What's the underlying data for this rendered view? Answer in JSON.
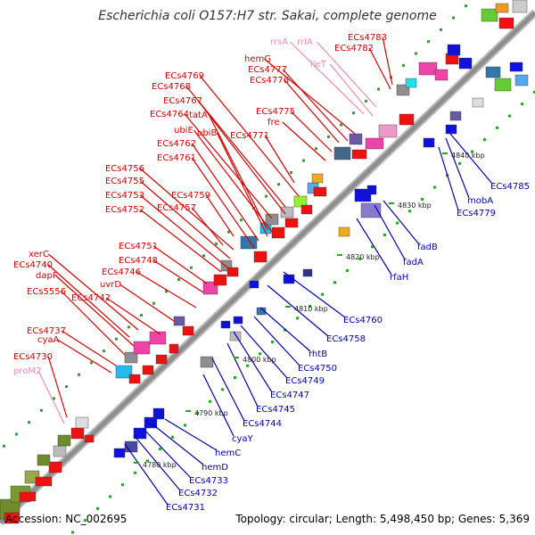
{
  "title": "Escherichia coli O157:H7 str. Sakai, complete genome",
  "footer": {
    "accession": "Accession: NC_002695",
    "summary": "Topology: circular; Length: 5,498,450 bp; Genes: 5,369"
  },
  "colors": {
    "forward_label": "#dd0000",
    "reverse_label": "#0000bb",
    "rna_label": "#f08cb4",
    "forward_gene": "#ee1111",
    "reverse_gene": "#1111dd",
    "axis": "#999999"
  },
  "ticks": [
    "4780 kbp",
    "4790 kbp",
    "4800 kbp",
    "4810 kbp",
    "4820 kbp",
    "4830 kbp",
    "4840 kbp"
  ],
  "labels_forward": [
    "ECs4783",
    "ECs4782",
    "rrsA",
    "rrlA",
    "hemG",
    "ECs4777",
    "ileT",
    "ECs4776",
    "ECs4769",
    "ECs4768",
    "ECs4767",
    "ECs4764",
    "tatA",
    "ECs4775",
    "fre",
    "ubiE",
    "ubiB",
    "ECs4771",
    "ECs4762",
    "ECs4761",
    "ECs4756",
    "ECs4755",
    "ECs4759",
    "ECs4753",
    "ECs4757",
    "ECs4752",
    "ECs4751",
    "ECs4748",
    "ECs4746",
    "xerC",
    "ECs4740",
    "dapF",
    "uvrD",
    "ECs5556",
    "ECs4742",
    "ECs4737",
    "cyaA",
    "ECs4730",
    "proM2"
  ],
  "labels_reverse": [
    "ECs4785",
    "mobA",
    "ECs4779",
    "fadB",
    "fadA",
    "rfaH",
    "ECs4760",
    "ECs4758",
    "rhtB",
    "ECs4750",
    "ECs4749",
    "ECs4747",
    "ECs4745",
    "ECs4744",
    "cyaY",
    "hemC",
    "hemD",
    "ECs4733",
    "ECs4732",
    "ECs4731"
  ]
}
